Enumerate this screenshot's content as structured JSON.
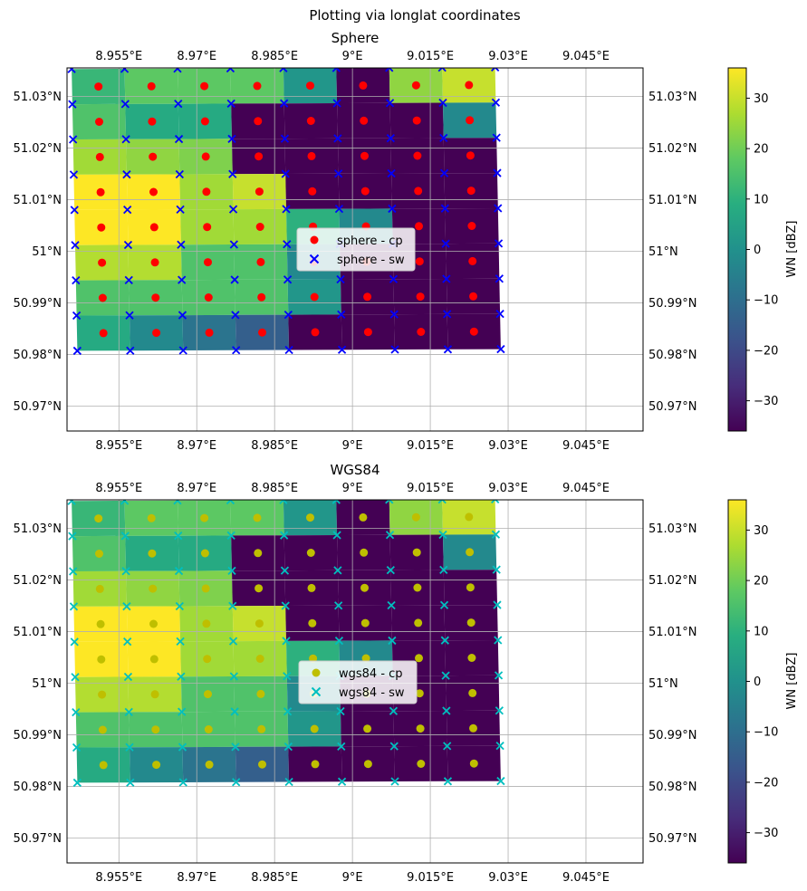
{
  "figure": {
    "suptitle": "Plotting via longlat coordinates"
  },
  "colors": {
    "sphere_cp": "#ff0000",
    "sphere_sw": "#0000ff",
    "wgs84_cp": "#bfbf00",
    "wgs84_sw": "#00bfbf",
    "grid": "#b0b0b0",
    "colormap": "viridis"
  },
  "chart_data": [
    {
      "type": "heatmap",
      "title": "Sphere",
      "xlim": [
        8.945,
        9.056
      ],
      "ylim": [
        50.9652,
        51.0355
      ],
      "x_ticks": [
        {
          "v": 8.955,
          "label": "8.955°E"
        },
        {
          "v": 8.97,
          "label": "8.97°E"
        },
        {
          "v": 8.985,
          "label": "8.985°E"
        },
        {
          "v": 9.0,
          "label": "9°E"
        },
        {
          "v": 9.015,
          "label": "9.015°E"
        },
        {
          "v": 9.03,
          "label": "9.03°E"
        },
        {
          "v": 9.045,
          "label": "9.045°E"
        }
      ],
      "y_ticks": [
        {
          "v": 50.97,
          "label": "50.97°N"
        },
        {
          "v": 50.98,
          "label": "50.98°N"
        },
        {
          "v": 50.99,
          "label": "50.99°N"
        },
        {
          "v": 51.0,
          "label": "51°N"
        },
        {
          "v": 51.01,
          "label": "51.01°N"
        },
        {
          "v": 51.02,
          "label": "51.02°N"
        },
        {
          "v": 51.03,
          "label": "51.03°N"
        }
      ],
      "grid": true,
      "colorbar": {
        "label": "WN [dBZ]",
        "range": [
          -36,
          36
        ],
        "ticks": [
          -30,
          -20,
          -10,
          0,
          10,
          20,
          30
        ]
      },
      "values_dbz": [
        [
          12,
          18,
          18,
          18,
          2,
          -36,
          24,
          30
        ],
        [
          16,
          8,
          8,
          -36,
          -36,
          -36,
          -36,
          -2
        ],
        [
          26,
          24,
          22,
          -36,
          -36,
          -36,
          -36,
          -36
        ],
        [
          36,
          36,
          26,
          30,
          -36,
          -36,
          -36,
          -36
        ],
        [
          36,
          36,
          26,
          26,
          10,
          -2,
          -36,
          -36
        ],
        [
          28,
          28,
          16,
          16,
          -2,
          -36,
          -36,
          -36
        ],
        [
          16,
          16,
          16,
          16,
          2,
          -36,
          -36,
          -36
        ],
        [
          8,
          -2,
          -8,
          -14,
          -36,
          -36,
          -36,
          -36
        ]
      ],
      "legend": {
        "position": "center",
        "entries": [
          "sphere - cp",
          "sphere - sw"
        ]
      },
      "series": [
        {
          "name": "sphere - cp",
          "marker": "circle"
        },
        {
          "name": "sphere - sw",
          "marker": "x"
        }
      ]
    },
    {
      "type": "heatmap",
      "title": "WGS84",
      "xlim": [
        8.945,
        9.056
      ],
      "ylim": [
        50.9652,
        51.0355
      ],
      "x_ticks": [
        {
          "v": 8.955,
          "label": "8.955°E"
        },
        {
          "v": 8.97,
          "label": "8.97°E"
        },
        {
          "v": 8.985,
          "label": "8.985°E"
        },
        {
          "v": 9.0,
          "label": "9°E"
        },
        {
          "v": 9.015,
          "label": "9.015°E"
        },
        {
          "v": 9.03,
          "label": "9.03°E"
        },
        {
          "v": 9.045,
          "label": "9.045°E"
        }
      ],
      "y_ticks": [
        {
          "v": 50.97,
          "label": "50.97°N"
        },
        {
          "v": 50.98,
          "label": "50.98°N"
        },
        {
          "v": 50.99,
          "label": "50.99°N"
        },
        {
          "v": 51.0,
          "label": "51°N"
        },
        {
          "v": 51.01,
          "label": "51.01°N"
        },
        {
          "v": 51.02,
          "label": "51.02°N"
        },
        {
          "v": 51.03,
          "label": "51.03°N"
        }
      ],
      "grid": true,
      "colorbar": {
        "label": "WN [dBZ]",
        "range": [
          -36,
          36
        ],
        "ticks": [
          -30,
          -20,
          -10,
          0,
          10,
          20,
          30
        ]
      },
      "values_dbz": [
        [
          12,
          18,
          18,
          18,
          2,
          -36,
          24,
          30
        ],
        [
          16,
          8,
          8,
          -36,
          -36,
          -36,
          -36,
          -2
        ],
        [
          26,
          24,
          22,
          -36,
          -36,
          -36,
          -36,
          -36
        ],
        [
          36,
          36,
          26,
          30,
          -36,
          -36,
          -36,
          -36
        ],
        [
          36,
          36,
          26,
          26,
          10,
          -2,
          -36,
          -36
        ],
        [
          28,
          28,
          16,
          16,
          -2,
          -36,
          -36,
          -36
        ],
        [
          16,
          16,
          16,
          16,
          2,
          -36,
          -36,
          -36
        ],
        [
          8,
          -2,
          -8,
          -14,
          -36,
          -36,
          -36,
          -36
        ]
      ],
      "legend": {
        "position": "center",
        "entries": [
          "wgs84 - cp",
          "wgs84 - sw"
        ]
      },
      "series": [
        {
          "name": "wgs84 - cp",
          "marker": "circle"
        },
        {
          "name": "wgs84 - sw",
          "marker": "x"
        }
      ]
    }
  ]
}
